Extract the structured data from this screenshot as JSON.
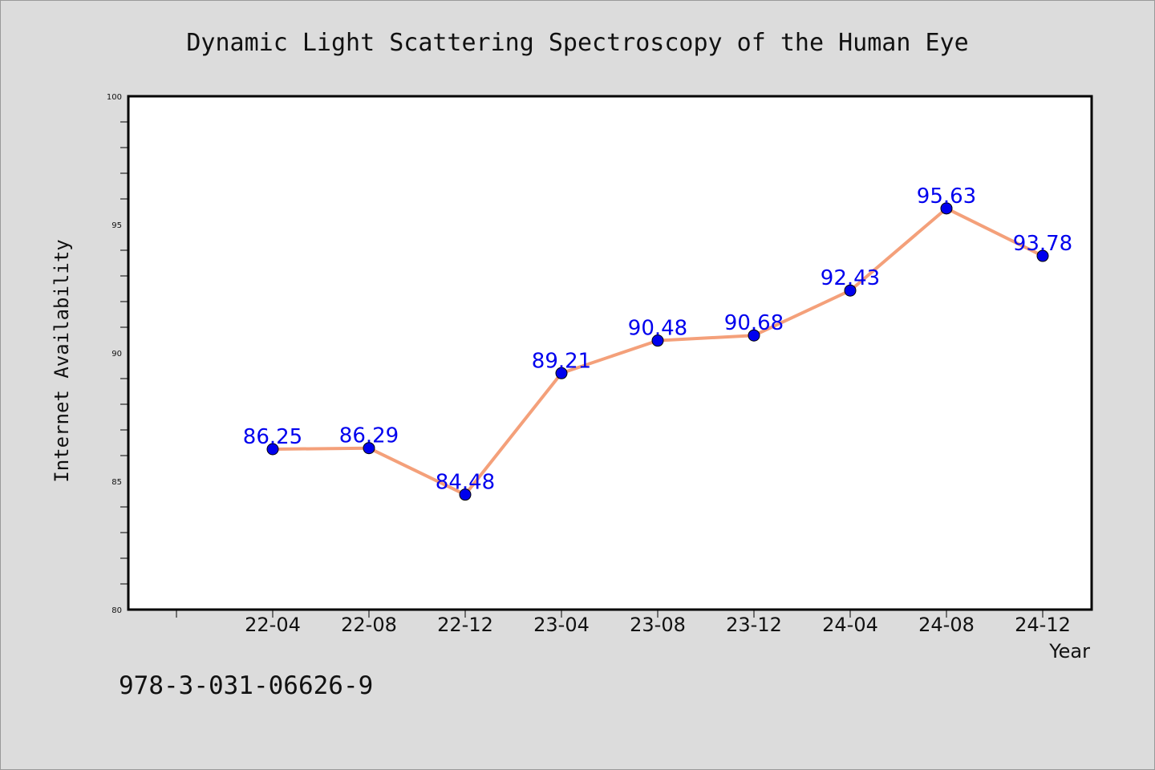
{
  "colors": {
    "background": "#dcdcdc",
    "plot_background": "#ffffff",
    "line": "#f4a07a",
    "marker": "#0000ee",
    "data_label": "#0000ee"
  },
  "chart_data": {
    "type": "line",
    "title": "Dynamic Light Scattering Spectroscopy of the Human Eye",
    "xlabel": "Year",
    "ylabel": "Internet Availability",
    "categories": [
      "22-04",
      "22-08",
      "22-12",
      "23-04",
      "23-08",
      "23-12",
      "24-04",
      "24-08",
      "24-12"
    ],
    "series": [
      {
        "values": [
          86.25,
          86.29,
          84.48,
          89.21,
          90.48,
          90.68,
          92.43,
          95.63,
          93.78
        ]
      }
    ],
    "data_labels": [
      "86.25",
      "86.29",
      "84.48",
      "89.21",
      "90.48",
      "90.68",
      "92.43",
      "95.63",
      "93.78"
    ],
    "ylim": [
      80,
      100
    ],
    "yticks": [
      "80",
      "85",
      "90",
      "95",
      "100"
    ],
    "grid": false,
    "legend": "none"
  },
  "footer_text": "978-3-031-06626-9"
}
